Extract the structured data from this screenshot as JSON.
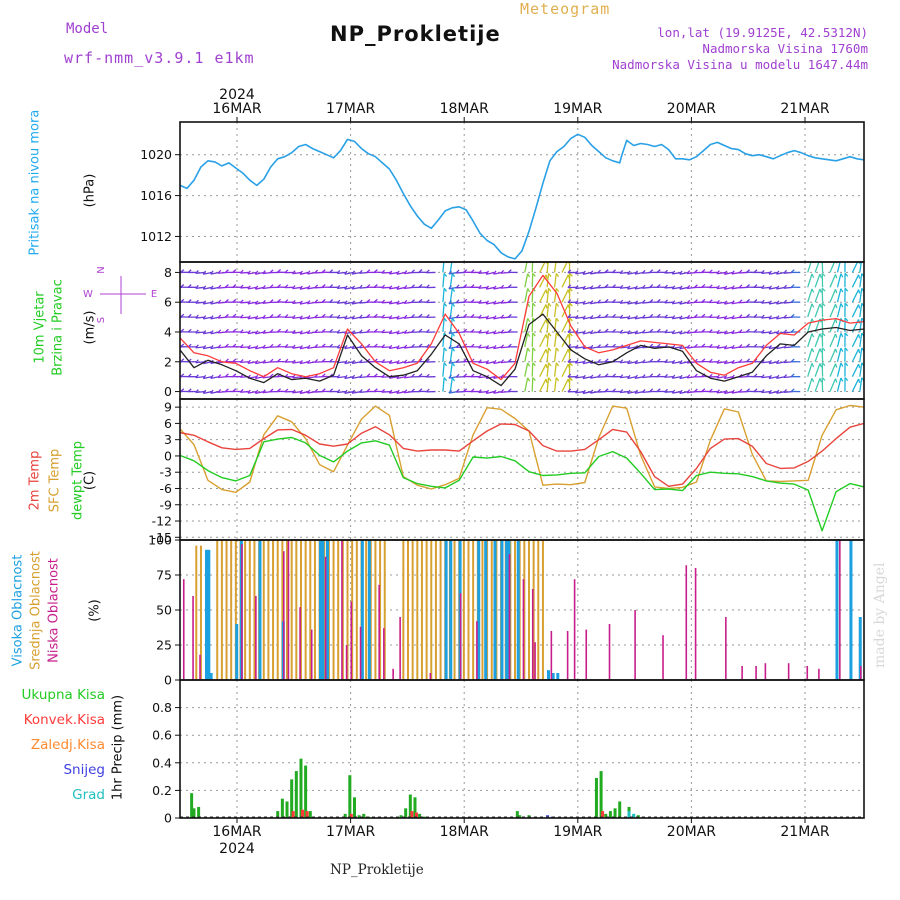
{
  "header": {
    "model_label": "Model",
    "model_name": "wrf-nmm_v3.9.1 e1km",
    "title": "NP_Prokletije",
    "meteogram_label": "Meteogram",
    "lonlat": "lon,lat (19.9125E, 42.5312N)",
    "altitude": "Nadmorska Visina 1760m",
    "model_altitude": "Nadmorska Visina u modelu 1647.44m",
    "footer": "NP_Prokletije",
    "watermark": "made by Angel"
  },
  "colors": {
    "pressure": "#2aa0e6",
    "wind_speed": "#222222",
    "gust": "#ff3a3a",
    "temp2m": "#e8443c",
    "sfc_temp": "#d8a030",
    "dewpt": "#22cc22",
    "cloud_high": "#1ca0e0",
    "cloud_mid": "#d8a030",
    "cloud_low": "#c81e8c",
    "precip_total": "#22aa22",
    "precip_conv": "#ff3a3a",
    "precip_frz": "#ff8a30",
    "precip_snow": "#4040e0",
    "precip_grad": "#20c0c0"
  },
  "axis_dates": {
    "year": "2024",
    "labels": [
      "16MAR",
      "17MAR",
      "18MAR",
      "19MAR",
      "20MAR",
      "21MAR"
    ]
  },
  "chart_data": [
    {
      "type": "line",
      "id": "pressure",
      "ylabel_left": "Pritisak na nivou mora",
      "unit": "(hPa)",
      "yticks": [
        1012,
        1016,
        1020
      ],
      "ylim": [
        1009.5,
        1023.2
      ],
      "x_hours": [
        0,
        3,
        6,
        9,
        12,
        15,
        18,
        21,
        24,
        27,
        30,
        33,
        36,
        39,
        42,
        45,
        48,
        51,
        54,
        57,
        60,
        63,
        66,
        69,
        72,
        75,
        78,
        81,
        84,
        87,
        90,
        93,
        96,
        99,
        102,
        105,
        108,
        111,
        114,
        117,
        120,
        123,
        126,
        129,
        132,
        135,
        138,
        141,
        144,
        147,
        150,
        153,
        156,
        159,
        162,
        165,
        168,
        171,
        174,
        177,
        180,
        183,
        186,
        189,
        190,
        192,
        195,
        198,
        201,
        204,
        207,
        210,
        213,
        216,
        219,
        222,
        225,
        228,
        231,
        234,
        237,
        240,
        243,
        246,
        249,
        252,
        255,
        258,
        261,
        264,
        267,
        270,
        273,
        276,
        279,
        282,
        285,
        288,
        291,
        294
      ],
      "values": [
        1017.0,
        1016.7,
        1017.5,
        1018.8,
        1019.4,
        1019.3,
        1018.9,
        1019.2,
        1018.7,
        1018.2,
        1017.5,
        1017.0,
        1017.6,
        1018.8,
        1019.6,
        1019.8,
        1020.2,
        1020.8,
        1021.0,
        1020.6,
        1020.3,
        1020.0,
        1019.7,
        1020.4,
        1021.5,
        1021.3,
        1020.6,
        1020.1,
        1019.8,
        1019.2,
        1018.6,
        1017.5,
        1016.2,
        1015.0,
        1014.0,
        1013.2,
        1012.8,
        1013.6,
        1014.5,
        1014.8,
        1014.9,
        1014.6,
        1013.5,
        1012.3,
        1011.6,
        1011.2,
        1010.4,
        1010.0,
        1009.8,
        1010.6,
        1012.5,
        1014.8,
        1017.2,
        1019.4,
        1020.3,
        1020.8,
        1021.6,
        1022.0,
        1021.7,
        1020.9,
        1020.3,
        1019.7,
        1019.4,
        1019.2,
        1020.0,
        1021.4,
        1020.9,
        1021.1,
        1021.0,
        1020.8,
        1021.0,
        1020.5,
        1019.6,
        1019.6,
        1019.5,
        1019.8,
        1020.4,
        1021.0,
        1021.2,
        1020.9,
        1020.6,
        1020.5,
        1020.1,
        1019.9,
        1020.0,
        1019.8,
        1019.6,
        1019.9,
        1020.2,
        1020.4,
        1020.2,
        1019.9,
        1019.7,
        1019.6,
        1019.5,
        1019.4,
        1019.6,
        1019.8,
        1019.6,
        1019.5
      ]
    },
    {
      "type": "line",
      "id": "wind",
      "ylabel_left": "10m Vjetar",
      "ylabel_left2": "Brzina i Pravac",
      "unit": "(m/s)",
      "compass": {
        "n": "N",
        "s": "S",
        "w": "W",
        "e": "E"
      },
      "yticks": [
        0,
        2,
        4,
        6,
        8
      ],
      "ylim": [
        -0.5,
        8.7
      ],
      "barb_levels": [
        0,
        1,
        2,
        3,
        4,
        5,
        6,
        7,
        8
      ],
      "x_hours": [
        0,
        6,
        12,
        18,
        24,
        30,
        36,
        42,
        48,
        54,
        60,
        66,
        72,
        78,
        84,
        90,
        96,
        102,
        108,
        114,
        120,
        126,
        132,
        138,
        144,
        150,
        156,
        162,
        168,
        174,
        180,
        186,
        192,
        198,
        204,
        210,
        216,
        222,
        228,
        234,
        240,
        246,
        252,
        258,
        264,
        270,
        276,
        282,
        288,
        294
      ],
      "series": [
        {
          "name": "speed",
          "values": [
            2.8,
            1.6,
            2.1,
            1.8,
            1.4,
            0.9,
            0.6,
            1.2,
            0.8,
            0.9,
            0.7,
            1.1,
            3.8,
            2.4,
            1.6,
            1.0,
            1.1,
            1.4,
            2.5,
            3.8,
            3.2,
            1.4,
            1.0,
            0.4,
            1.5,
            4.5,
            5.2,
            4.0,
            2.8,
            2.2,
            1.8,
            2.0,
            2.6,
            3.1,
            2.9,
            3.0,
            2.7,
            1.4,
            0.9,
            0.7,
            1.0,
            1.3,
            2.4,
            3.2,
            3.1,
            4.0,
            4.2,
            4.3,
            4.1,
            4.2
          ]
        },
        {
          "name": "gust",
          "values": [
            3.6,
            2.6,
            2.4,
            2.0,
            1.9,
            1.4,
            1.0,
            1.6,
            1.2,
            1.0,
            1.2,
            1.6,
            4.2,
            3.2,
            2.0,
            1.4,
            1.6,
            1.9,
            3.2,
            5.2,
            3.9,
            1.9,
            1.5,
            0.8,
            1.9,
            6.4,
            7.8,
            6.6,
            4.4,
            3.0,
            2.6,
            2.8,
            3.1,
            3.4,
            3.3,
            3.2,
            3.1,
            1.9,
            1.3,
            1.1,
            1.6,
            1.9,
            3.1,
            3.9,
            3.8,
            4.6,
            4.8,
            4.9,
            4.6,
            4.7
          ]
        }
      ]
    },
    {
      "type": "line",
      "id": "temperature",
      "ylabel_left": "2m Temp",
      "ylabel_left2": "SFC Temp",
      "ylabel_left3": "dewpt Temp",
      "unit": "(C)",
      "yticks": [
        -15,
        -12,
        -9,
        -6,
        -3,
        0,
        3,
        6,
        9
      ],
      "ylim": [
        -15.5,
        10.5
      ],
      "x_hours": [
        0,
        6,
        12,
        18,
        24,
        30,
        36,
        42,
        48,
        54,
        60,
        66,
        72,
        78,
        84,
        90,
        96,
        102,
        108,
        114,
        120,
        126,
        132,
        138,
        144,
        150,
        156,
        162,
        168,
        174,
        180,
        186,
        192,
        198,
        204,
        210,
        216,
        222,
        228,
        234,
        240,
        246,
        252,
        258,
        264,
        270,
        276,
        282,
        288,
        294
      ],
      "series": [
        {
          "name": "2m Temp",
          "values": [
            4.3,
            3.8,
            2.6,
            1.5,
            1.2,
            1.4,
            3.2,
            4.8,
            4.9,
            3.8,
            2.2,
            1.8,
            2.2,
            4.2,
            5.4,
            3.9,
            1.4,
            0.9,
            1.1,
            1.1,
            0.9,
            2.8,
            4.6,
            5.9,
            5.8,
            4.6,
            1.9,
            0.9,
            0.9,
            1.2,
            3.0,
            4.9,
            4.4,
            0.8,
            -3.8,
            -5.6,
            -5.2,
            -2.3,
            1.4,
            3.1,
            3.2,
            1.8,
            -1.4,
            -2.3,
            -2.2,
            -1.0,
            0.9,
            3.2,
            5.3,
            6.0
          ]
        },
        {
          "name": "SFC Temp",
          "values": [
            5.0,
            2.1,
            -4.5,
            -6.2,
            -6.7,
            -4.8,
            3.9,
            7.4,
            6.3,
            3.2,
            -1.6,
            -2.9,
            2.0,
            6.8,
            9.2,
            7.5,
            -3.8,
            -5.4,
            -6.1,
            -5.3,
            -4.1,
            3.9,
            8.9,
            8.6,
            6.9,
            4.6,
            -5.4,
            -5.2,
            -5.3,
            -4.9,
            3.4,
            9.2,
            8.8,
            0.1,
            -5.7,
            -6.0,
            -5.8,
            -4.8,
            2.9,
            8.7,
            8.1,
            0.3,
            -4.6,
            -4.7,
            -4.6,
            -4.5,
            3.8,
            8.5,
            9.3,
            9.0
          ]
        },
        {
          "name": "dewpt Temp",
          "values": [
            0.1,
            -0.9,
            -2.7,
            -4.0,
            -4.6,
            -3.6,
            2.6,
            3.1,
            3.4,
            2.4,
            0.1,
            -1.1,
            0.9,
            2.4,
            2.8,
            2.0,
            -4.0,
            -5.1,
            -5.6,
            -5.9,
            -4.5,
            -0.2,
            -0.4,
            -0.1,
            -0.9,
            -2.9,
            -3.6,
            -3.5,
            -3.2,
            -3.1,
            -0.1,
            0.8,
            -0.4,
            -3.2,
            -6.2,
            -6.1,
            -6.4,
            -3.6,
            -3.0,
            -3.2,
            -3.3,
            -3.8,
            -4.6,
            -5.0,
            -5.2,
            -6.3,
            -13.8,
            -6.6,
            -5.1,
            -5.7
          ]
        }
      ]
    },
    {
      "type": "bar",
      "id": "clouds",
      "ylabel_left": "Visoka Oblacnost",
      "ylabel_left2": "Srednja Oblacnost",
      "ylabel_left3": "Niska Oblacnost",
      "unit": "(%)",
      "yticks": [
        0,
        25,
        50,
        75,
        100
      ],
      "ylim": [
        0,
        100
      ],
      "series": [
        {
          "name": "Visoka Oblacnost",
          "x_hours": [
            11,
            12,
            13,
            24,
            26,
            34,
            44,
            60,
            61,
            63,
            78,
            81,
            114,
            116,
            120,
            128,
            131,
            135,
            138,
            140,
            141,
            145,
            158,
            160,
            162,
            282,
            288,
            292
          ],
          "values": [
            93,
            93,
            5,
            40,
            100,
            100,
            42,
            100,
            100,
            100,
            100,
            100,
            100,
            100,
            100,
            100,
            100,
            100,
            100,
            100,
            100,
            100,
            7,
            5,
            5,
            100,
            100,
            45
          ]
        },
        {
          "name": "Srednja Oblacnost",
          "x_hours": [
            7,
            9,
            16,
            18,
            20,
            22,
            24,
            26,
            28,
            30,
            32,
            34,
            36,
            38,
            40,
            42,
            44,
            46,
            48,
            50,
            52,
            54,
            56,
            58,
            60,
            62,
            64,
            66,
            68,
            70,
            72,
            74,
            76,
            78,
            80,
            82,
            84,
            86,
            88,
            96,
            98,
            100,
            102,
            104,
            106,
            108,
            110,
            112,
            114,
            116,
            118,
            120,
            122,
            124,
            126,
            128,
            130,
            132,
            134,
            136,
            138,
            140,
            142,
            144,
            146,
            148,
            150,
            152,
            154,
            156
          ],
          "values": [
            96,
            96,
            100,
            100,
            100,
            100,
            100,
            100,
            100,
            100,
            100,
            100,
            100,
            100,
            100,
            100,
            100,
            100,
            100,
            100,
            100,
            100,
            100,
            100,
            100,
            100,
            100,
            100,
            100,
            100,
            100,
            100,
            100,
            100,
            100,
            100,
            100,
            100,
            100,
            100,
            100,
            100,
            100,
            100,
            100,
            100,
            100,
            100,
            100,
            100,
            100,
            100,
            100,
            100,
            100,
            100,
            100,
            100,
            100,
            100,
            100,
            100,
            100,
            100,
            100,
            100,
            100,
            100,
            100,
            100
          ]
        },
        {
          "name": "Niska Oblacnost",
          "x_hours": [
            2,
            6,
            9,
            27,
            33,
            45,
            47,
            52,
            57,
            63,
            70,
            72,
            74,
            78,
            86,
            88,
            92,
            95,
            108,
            121,
            128,
            142,
            148,
            152,
            153,
            160,
            167,
            170,
            175,
            185,
            196,
            208,
            218,
            222,
            235,
            242,
            248,
            252,
            262,
            270,
            275,
            284,
            293
          ],
          "values": [
            72,
            60,
            18,
            97,
            60,
            92,
            100,
            52,
            36,
            88,
            100,
            25,
            56,
            38,
            68,
            37,
            8,
            45,
            5,
            62,
            42,
            90,
            72,
            65,
            27,
            35,
            35,
            72,
            36,
            40,
            50,
            32,
            82,
            80,
            45,
            10,
            10,
            12,
            12,
            10,
            8,
            100,
            10
          ]
        }
      ]
    },
    {
      "type": "bar",
      "id": "precip",
      "legend": [
        "Ukupna Kisa",
        "Konvek.Kisa",
        "Zaledj.Kisa",
        "Snijeg",
        "Grad"
      ],
      "ylabel_left": "1hr Precip (mm)",
      "yticks": [
        0,
        0.2,
        0.4,
        0.6,
        0.8
      ],
      "ylim": [
        0,
        1.0
      ],
      "series": [
        {
          "name": "Ukupna Kisa",
          "x_hours": [
            5,
            6,
            8,
            42,
            44,
            46,
            48,
            50,
            52,
            54,
            56,
            71,
            73,
            75,
            77,
            79,
            81,
            95,
            97,
            99,
            101,
            103,
            105,
            145,
            146,
            150,
            179,
            181,
            183,
            185,
            187,
            189,
            193,
            195,
            197,
            199
          ],
          "values": [
            0.18,
            0.07,
            0.08,
            0.05,
            0.14,
            0.12,
            0.28,
            0.34,
            0.43,
            0.38,
            0.05,
            0.03,
            0.31,
            0.15,
            0.02,
            0.03,
            0.01,
            0.02,
            0.07,
            0.17,
            0.15,
            0.03,
            0.01,
            0.05,
            0.02,
            0.02,
            0.29,
            0.34,
            0.03,
            0.05,
            0.07,
            0.12,
            0.08,
            0.02,
            0.02,
            0.01
          ]
        },
        {
          "name": "Konvek.Kisa",
          "x_hours": [
            48,
            52,
            54,
            73,
            99,
            101,
            181
          ],
          "values": [
            0.05,
            0.06,
            0.05,
            0.03,
            0.05,
            0.04,
            0.05
          ]
        },
        {
          "name": "Snijeg",
          "x_hours": [
            158,
            160
          ],
          "values": [
            0.02,
            0.01
          ]
        },
        {
          "name": "Grad",
          "x_hours": [
            193,
            195
          ],
          "values": [
            0.05,
            0.03
          ]
        }
      ]
    }
  ]
}
